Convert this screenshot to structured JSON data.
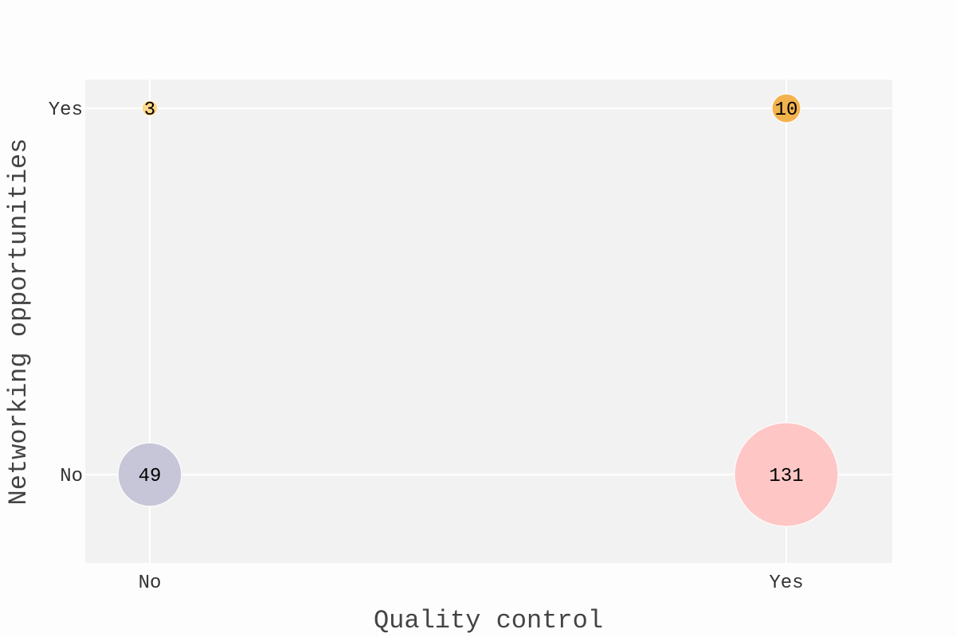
{
  "chart_data": {
    "type": "scatter",
    "subtype": "bubble",
    "title": "",
    "xlabel": "Quality control",
    "ylabel": "Networking opportunities",
    "x_categories": [
      "No",
      "Yes"
    ],
    "y_categories": [
      "No",
      "Yes"
    ],
    "grid": true,
    "legend": "none",
    "points": [
      {
        "x": "No",
        "y": "No",
        "count": 49,
        "label": "49",
        "color": "#c6c6d8"
      },
      {
        "x": "Yes",
        "y": "No",
        "count": 131,
        "label": "131",
        "color": "#ffc6c6"
      },
      {
        "x": "No",
        "y": "Yes",
        "count": 3,
        "label": "3",
        "color": "#ffd98c"
      },
      {
        "x": "Yes",
        "y": "Yes",
        "count": 10,
        "label": "10",
        "color": "#f2b24d"
      }
    ],
    "colors": {
      "panel_background": "#f2f2f2",
      "page_background": "#fdfdfd",
      "grid": "#ffffff"
    }
  }
}
